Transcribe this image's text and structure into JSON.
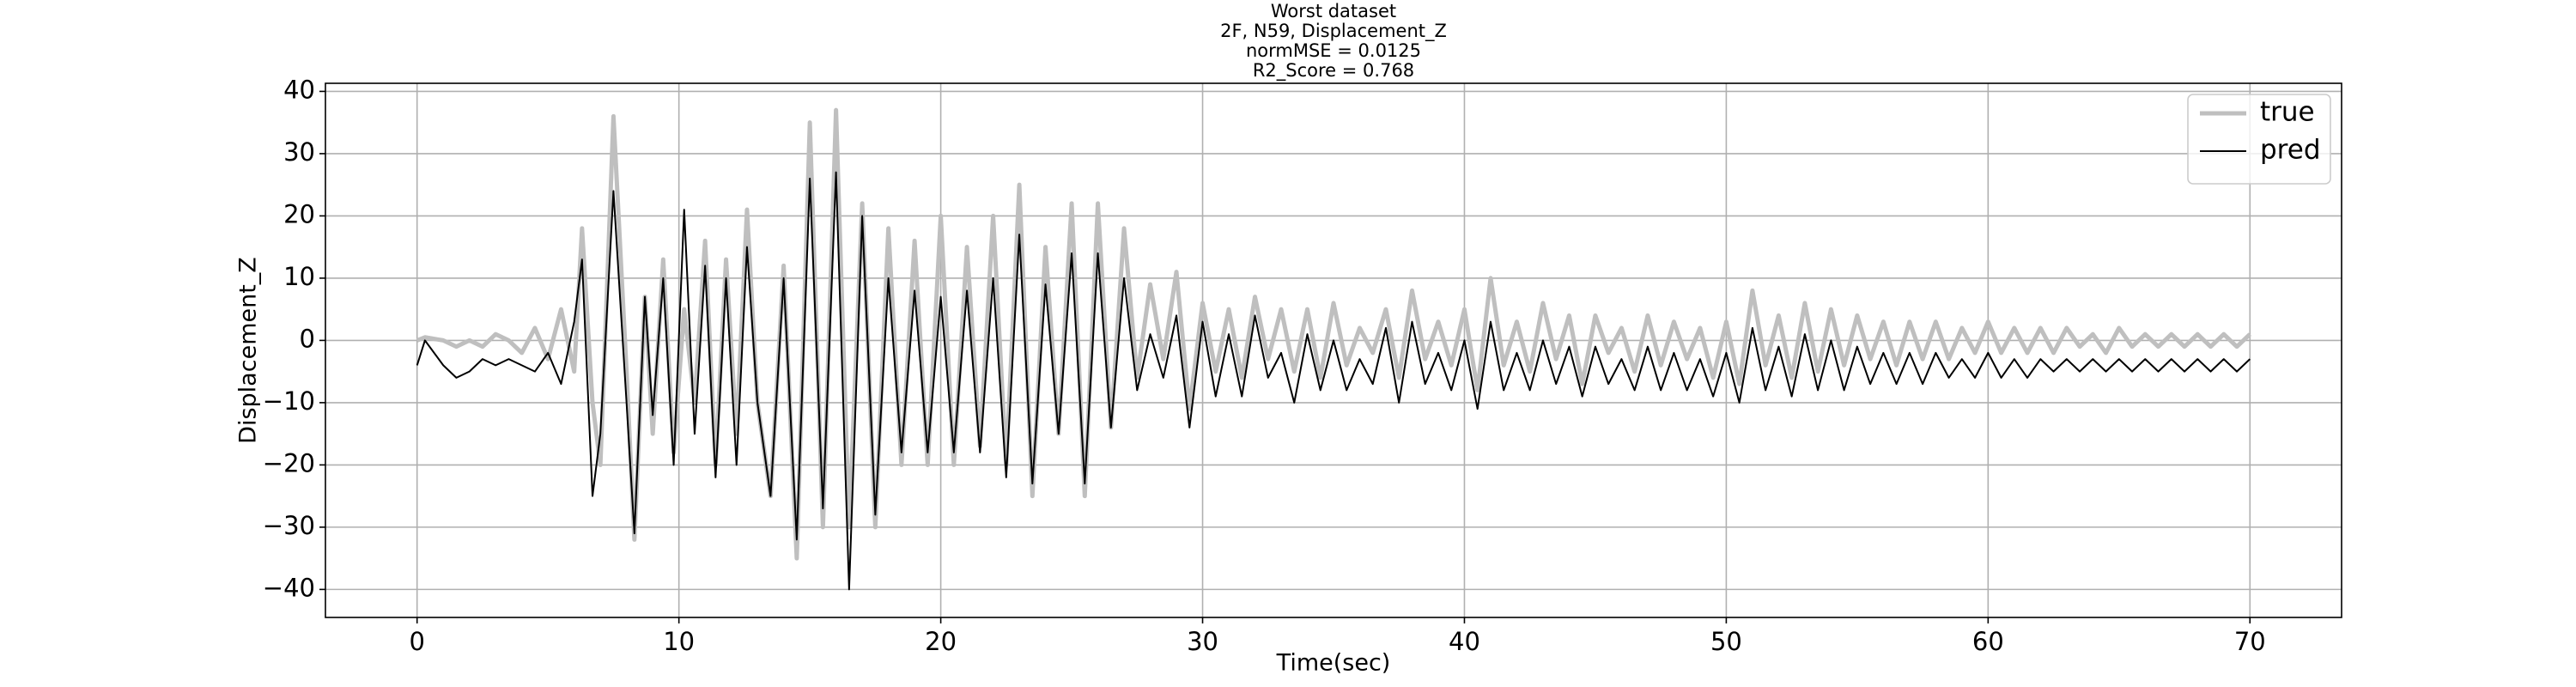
{
  "chart_data": {
    "type": "line",
    "title": [
      "Worst dataset",
      "2F, N59, Displacement_Z",
      "normMSE = 0.0125",
      "R2_Score = 0.768"
    ],
    "x_label": "Time(sec)",
    "y_label": "Displacement_Z",
    "x": [
      0,
      0.3,
      1,
      1.5,
      2,
      2.5,
      3,
      3.5,
      4,
      4.5,
      5,
      5.5,
      6,
      6.3,
      6.7,
      7,
      7.5,
      8,
      8.3,
      8.7,
      9,
      9.4,
      9.8,
      10.2,
      10.6,
      11,
      11.4,
      11.8,
      12.2,
      12.6,
      13,
      13.5,
      14,
      14.5,
      15,
      15.5,
      16,
      16.5,
      17,
      17.5,
      18,
      18.5,
      19,
      19.5,
      20,
      20.5,
      21,
      21.5,
      22,
      22.5,
      23,
      23.5,
      24,
      24.5,
      25,
      25.5,
      26,
      26.5,
      27,
      27.5,
      28,
      28.5,
      29,
      29.5,
      30,
      30.5,
      31,
      31.5,
      32,
      32.5,
      33,
      33.5,
      34,
      34.5,
      35,
      35.5,
      36,
      36.5,
      37,
      37.5,
      38,
      38.5,
      39,
      39.5,
      40,
      40.5,
      41,
      41.5,
      42,
      42.5,
      43,
      43.5,
      44,
      44.5,
      45,
      45.5,
      46,
      46.5,
      47,
      47.5,
      48,
      48.5,
      49,
      49.5,
      50,
      50.5,
      51,
      51.5,
      52,
      52.5,
      53,
      53.5,
      54,
      54.5,
      55,
      55.5,
      56,
      56.5,
      57,
      57.5,
      58,
      58.5,
      59,
      59.5,
      60,
      60.5,
      61,
      61.5,
      62,
      62.5,
      63,
      63.5,
      64,
      64.5,
      65,
      65.5,
      66,
      66.5,
      67,
      67.5,
      68,
      68.5,
      69,
      69.5,
      70
    ],
    "series": [
      {
        "name": "true",
        "color": "#bfbfbf",
        "width": 5,
        "values": [
          0,
          0.5,
          0,
          -1,
          0,
          -1,
          1,
          0,
          -2,
          2,
          -3,
          5,
          -5,
          18,
          -10,
          -20,
          36,
          -5,
          -32,
          7,
          -15,
          13,
          -18,
          5,
          -10,
          16,
          -20,
          13,
          -15,
          21,
          -10,
          -25,
          12,
          -35,
          35,
          -30,
          37,
          -30,
          22,
          -30,
          18,
          -20,
          16,
          -20,
          20,
          -20,
          15,
          -17,
          20,
          -20,
          25,
          -25,
          15,
          -15,
          22,
          -25,
          22,
          -14,
          18,
          -6,
          9,
          -3,
          11,
          -11,
          6,
          -5,
          5,
          -6,
          7,
          -3,
          5,
          -5,
          5,
          -6,
          6,
          -4,
          2,
          -2,
          5,
          -6,
          8,
          -3,
          3,
          -4,
          5,
          -8,
          10,
          -4,
          3,
          -5,
          6,
          -3,
          4,
          -7,
          4,
          -2,
          2,
          -5,
          4,
          -4,
          3,
          -3,
          2,
          -6,
          3,
          -7,
          8,
          -4,
          4,
          -6,
          6,
          -5,
          5,
          -4,
          4,
          -3,
          3,
          -4,
          3,
          -3,
          3,
          -3,
          2,
          -2,
          3,
          -2,
          2,
          -2,
          2,
          -2,
          2,
          -1,
          1,
          -2,
          2,
          -1,
          1,
          -1,
          1,
          -1,
          1,
          -1,
          1,
          -1,
          1
        ]
      },
      {
        "name": "pred",
        "color": "#000000",
        "width": 2,
        "values": [
          -4,
          0,
          -4,
          -6,
          -5,
          -3,
          -4,
          -3,
          -4,
          -5,
          -2,
          -7,
          3,
          13,
          -25,
          -15,
          24,
          -10,
          -31,
          7,
          -12,
          10,
          -20,
          21,
          -15,
          12,
          -22,
          10,
          -20,
          15,
          -10,
          -25,
          10,
          -32,
          26,
          -27,
          27,
          -40,
          20,
          -28,
          10,
          -18,
          8,
          -18,
          7,
          -18,
          8,
          -18,
          10,
          -22,
          17,
          -23,
          9,
          -15,
          14,
          -23,
          14,
          -14,
          10,
          -8,
          1,
          -6,
          4,
          -14,
          3,
          -9,
          1,
          -9,
          4,
          -6,
          -2,
          -10,
          1,
          -8,
          0,
          -8,
          -3,
          -7,
          2,
          -10,
          3,
          -7,
          -2,
          -8,
          0,
          -11,
          3,
          -8,
          -2,
          -8,
          0,
          -7,
          -1,
          -9,
          -1,
          -7,
          -3,
          -8,
          -1,
          -8,
          -2,
          -8,
          -3,
          -9,
          -2,
          -10,
          2,
          -8,
          -1,
          -9,
          1,
          -8,
          0,
          -8,
          -1,
          -7,
          -2,
          -7,
          -2,
          -7,
          -2,
          -6,
          -3,
          -6,
          -2,
          -6,
          -3,
          -6,
          -3,
          -5,
          -3,
          -5,
          -3,
          -5,
          -3,
          -5,
          -3,
          -5,
          -3,
          -5,
          -3,
          -5,
          -3,
          -5,
          -3
        ]
      }
    ],
    "xlim": [
      -3.5,
      73.5
    ],
    "ylim": [
      -44.5,
      41.3
    ],
    "xticks": [
      0,
      10,
      20,
      30,
      40,
      50,
      60,
      70
    ],
    "yticks": [
      {
        "value": -40,
        "label": "−40"
      },
      {
        "value": -30,
        "label": "−30"
      },
      {
        "value": -20,
        "label": "−20"
      },
      {
        "value": -10,
        "label": "−10"
      },
      0,
      10,
      20,
      30,
      40
    ],
    "grid": true,
    "legend": "upper right"
  }
}
